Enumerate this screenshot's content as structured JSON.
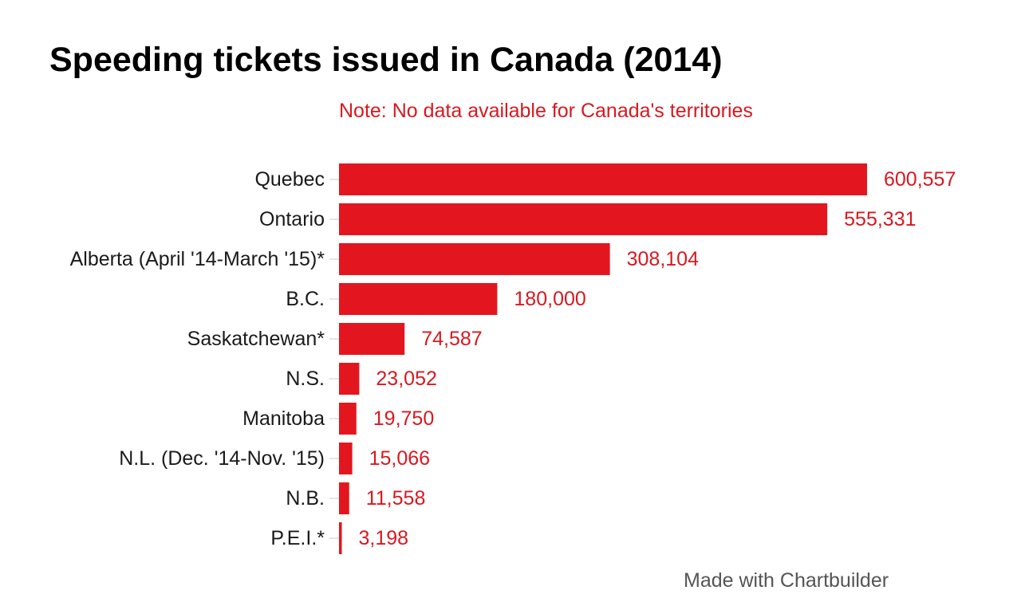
{
  "header": {
    "title": "Speeding tickets issued in Canada (2014)",
    "note": "Note: No data available for Canada's territories"
  },
  "footer": {
    "credit": "Made with Chartbuilder"
  },
  "colors": {
    "bar": "#e3161f",
    "value_label": "#d71920",
    "note": "#d71920",
    "category_label": "#1a1a1a",
    "tick": "#cccccc"
  },
  "chart_data": {
    "type": "bar",
    "orientation": "horizontal",
    "categories": [
      "Quebec",
      "Ontario",
      "Alberta (April '14-March '15)*",
      "B.C.",
      "Saskatchewan*",
      "N.S.",
      "Manitoba",
      "N.L. (Dec. '14-Nov. '15)",
      "N.B.",
      "P.E.I.*"
    ],
    "values": [
      600557,
      555331,
      308104,
      180000,
      74587,
      23052,
      19750,
      15066,
      11558,
      3198
    ],
    "value_labels": [
      "600,557",
      "555,331",
      "308,104",
      "180,000",
      "74,587",
      "23,052",
      "19,750",
      "15,066",
      "11,558",
      "3,198"
    ],
    "title": "Speeding tickets issued in Canada (2014)",
    "subtitle": "Note: No data available for Canada's territories",
    "xlabel": "",
    "ylabel": "",
    "xlim": [
      0,
      600557
    ],
    "grid": false,
    "legend": "none"
  }
}
